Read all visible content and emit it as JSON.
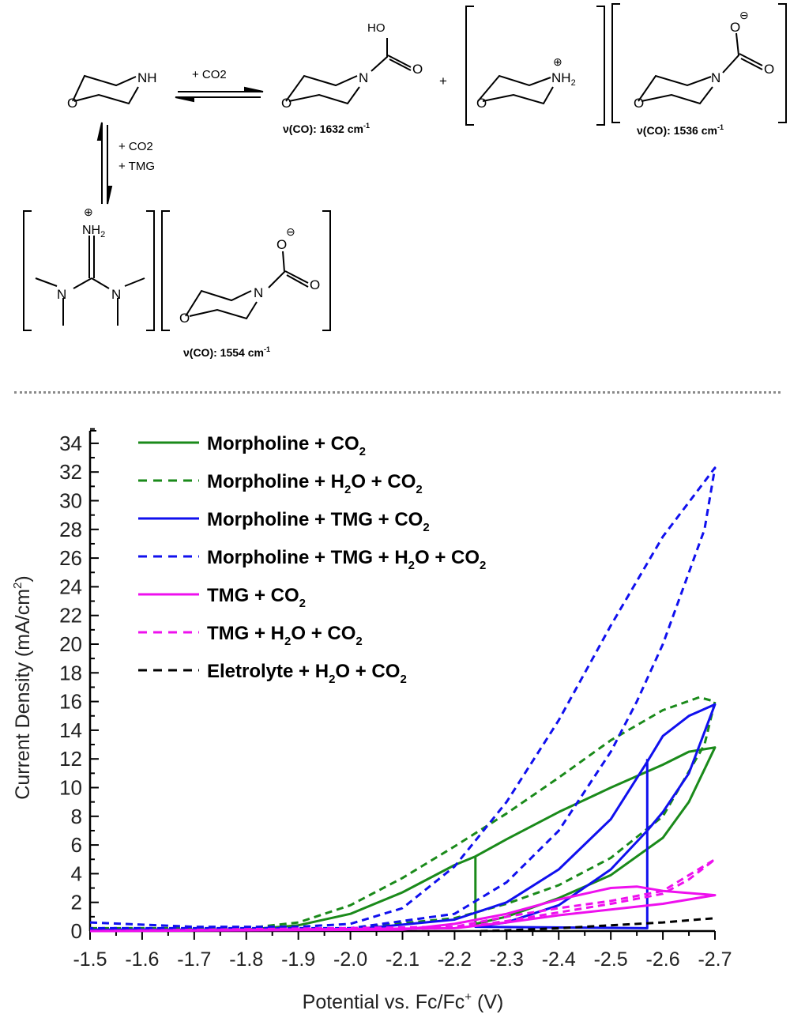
{
  "scheme": {
    "reactant": {
      "label": "NH",
      "ring_atom": "O"
    },
    "arrow_top_label": "+ CO2",
    "arrow_side_label_1": "+ CO2",
    "arrow_side_label_2": "+ TMG",
    "product_acid": {
      "group": "HO",
      "n": "N",
      "o": "O",
      "ring_atom": "O",
      "ir_prefix": "ν(CO): ",
      "ir_value": "1632 cm",
      "ir_exp": "-1"
    },
    "plus": "+",
    "ammonium": {
      "label": "NH",
      "sub": "2",
      "charge": "⊕",
      "ring_atom": "O"
    },
    "carbamate_top": {
      "o_minus": "O",
      "charge": "⊖",
      "n": "N",
      "o": "O",
      "ring_atom": "O",
      "ir_prefix": "ν(CO): ",
      "ir_value": "1536 cm",
      "ir_exp": "-1"
    },
    "guanidinium": {
      "label": "NH",
      "sub": "2",
      "charge": "⊕",
      "n1": "N",
      "n2": "N"
    },
    "carbamate_bottom": {
      "o_minus": "O",
      "charge": "⊖",
      "n": "N",
      "o": "O",
      "ring_atom": "O",
      "ir_prefix": "ν(CO): ",
      "ir_value": "1554 cm",
      "ir_exp": "-1"
    }
  },
  "chart_data": {
    "type": "line",
    "title": "",
    "xlabel": "Potential vs. Fc/Fc+ (V)",
    "ylabel": "Current Density (mA/cm2)",
    "xlim": [
      -1.5,
      -2.7
    ],
    "ylim": [
      0,
      35
    ],
    "x_ticks": [
      "-1.5",
      "-1.6",
      "-1.7",
      "-1.8",
      "-1.9",
      "-2.0",
      "-2.1",
      "-2.2",
      "-2.3",
      "-2.4",
      "-2.5",
      "-2.6",
      "-2.7"
    ],
    "y_ticks": [
      "0",
      "2",
      "4",
      "6",
      "8",
      "10",
      "12",
      "14",
      "16",
      "18",
      "20",
      "22",
      "24",
      "26",
      "28",
      "30",
      "32",
      "34"
    ],
    "grid": false,
    "legend_position": "upper-left",
    "series": [
      {
        "name": "Morpholine + CO2",
        "color": "#1a8a1a",
        "dash": "solid",
        "x": [
          -1.5,
          -1.8,
          -1.9,
          -2.0,
          -2.1,
          -2.2,
          -2.24,
          -2.3,
          -2.4,
          -2.5,
          -2.6,
          -2.65,
          -2.7,
          -2.7,
          -2.65,
          -2.6,
          -2.5,
          -2.4,
          -2.3,
          -2.24,
          -2.24
        ],
        "y": [
          0.1,
          0.1,
          0.4,
          1.2,
          2.7,
          4.6,
          5.2,
          6.4,
          8.3,
          10.0,
          11.6,
          12.5,
          12.8,
          12.8,
          9.0,
          6.5,
          3.9,
          2.3,
          1.0,
          0.5,
          5.2
        ]
      },
      {
        "name": "Morpholine + H2O + CO2",
        "color": "#1a8a1a",
        "dash": "dashed",
        "x": [
          -1.5,
          -1.8,
          -1.9,
          -2.0,
          -2.1,
          -2.2,
          -2.3,
          -2.4,
          -2.5,
          -2.6,
          -2.67,
          -2.7,
          -2.68,
          -2.6,
          -2.5,
          -2.4,
          -2.3,
          -2.2,
          -2.0,
          -1.5
        ],
        "y": [
          0.2,
          0.2,
          0.6,
          1.8,
          3.7,
          5.9,
          8.2,
          10.7,
          13.3,
          15.4,
          16.3,
          16.0,
          13.0,
          8.0,
          5.1,
          3.2,
          1.9,
          0.9,
          0.2,
          0.1
        ]
      },
      {
        "name": "Morpholine + TMG + CO2",
        "color": "#1010ee",
        "dash": "solid",
        "x": [
          -1.5,
          -2.0,
          -2.2,
          -2.3,
          -2.4,
          -2.5,
          -2.57,
          -2.6,
          -2.65,
          -2.7,
          -2.7,
          -2.65,
          -2.6,
          -2.57,
          -2.5,
          -2.4,
          -2.3,
          -2.24,
          -2.57,
          -2.57
        ],
        "y": [
          0.1,
          0.1,
          0.8,
          2.0,
          4.3,
          7.8,
          11.8,
          13.6,
          15.0,
          15.8,
          15.8,
          11.0,
          8.3,
          7.0,
          4.3,
          1.8,
          0.6,
          0.3,
          0.2,
          12.0
        ]
      },
      {
        "name": "Morpholine + TMG + H2O + CO2",
        "color": "#1010ee",
        "dash": "dashed",
        "x": [
          -1.5,
          -1.7,
          -1.9,
          -2.0,
          -2.1,
          -2.2,
          -2.3,
          -2.4,
          -2.5,
          -2.6,
          -2.7,
          -2.68,
          -2.6,
          -2.55,
          -2.5,
          -2.4,
          -2.3,
          -2.2,
          -2.0,
          -1.5
        ],
        "y": [
          0.6,
          0.3,
          0.3,
          0.5,
          1.6,
          4.5,
          9.0,
          14.7,
          21.3,
          27.5,
          32.3,
          28.0,
          20.0,
          16.0,
          12.5,
          7.0,
          3.4,
          1.2,
          0.2,
          0.2
        ]
      },
      {
        "name": "TMG + CO2",
        "color": "#ee10ee",
        "dash": "solid",
        "x": [
          -1.5,
          -2.1,
          -2.2,
          -2.3,
          -2.4,
          -2.5,
          -2.55,
          -2.6,
          -2.7,
          -2.7,
          -2.6,
          -2.5,
          -2.4,
          -2.3,
          -2.2,
          -1.5
        ],
        "y": [
          0.0,
          0.1,
          0.5,
          1.2,
          2.2,
          3.0,
          3.1,
          2.8,
          2.5,
          2.5,
          1.9,
          1.5,
          1.1,
          0.6,
          0.2,
          0.0
        ]
      },
      {
        "name": "TMG + H2O + CO2",
        "color": "#ee10ee",
        "dash": "dashed",
        "x": [
          -1.5,
          -2.2,
          -2.3,
          -2.4,
          -2.5,
          -2.6,
          -2.7,
          -2.65,
          -2.6,
          -2.5,
          -2.4,
          -2.3,
          -2.2,
          -1.5
        ],
        "y": [
          0.0,
          0.3,
          1.0,
          1.6,
          2.1,
          2.8,
          5.0,
          3.6,
          2.6,
          1.9,
          1.3,
          0.7,
          0.2,
          0.0
        ]
      },
      {
        "name": "Eletrolyte + H2O + CO2",
        "color": "#000000",
        "dash": "dashed",
        "x": [
          -2.25,
          -2.3,
          -2.4,
          -2.5,
          -2.6,
          -2.7
        ],
        "y": [
          0.0,
          0.05,
          0.2,
          0.4,
          0.6,
          0.9
        ]
      }
    ]
  },
  "legend": {
    "items": [
      {
        "main": "Morpholine + CO",
        "sub": "2",
        "tail": ""
      },
      {
        "main": "Morpholine + H",
        "sub": "2",
        "mid": "O + CO",
        "sub2": "2"
      },
      {
        "main": "Morpholine + TMG + CO",
        "sub": "2",
        "tail": ""
      },
      {
        "main": " Morpholine + TMG + H",
        "sub": "2",
        "mid": "O +  CO",
        "sub2": "2"
      },
      {
        "main": "TMG + CO",
        "sub": "2",
        "tail": ""
      },
      {
        "main": "TMG + H",
        "sub": "2",
        "mid": "O + CO",
        "sub2": "2"
      },
      {
        "main": "Eletrolyte + H",
        "sub": "2",
        "mid": "O + CO",
        "sub2": "2"
      }
    ]
  },
  "axes": {
    "ylabel_main": "Current Density (mA/cm",
    "ylabel_sup": "2",
    "ylabel_end": ")",
    "xlabel_main": "Potential vs. Fc/Fc",
    "xlabel_sup": "+",
    "xlabel_end": " (V)"
  }
}
